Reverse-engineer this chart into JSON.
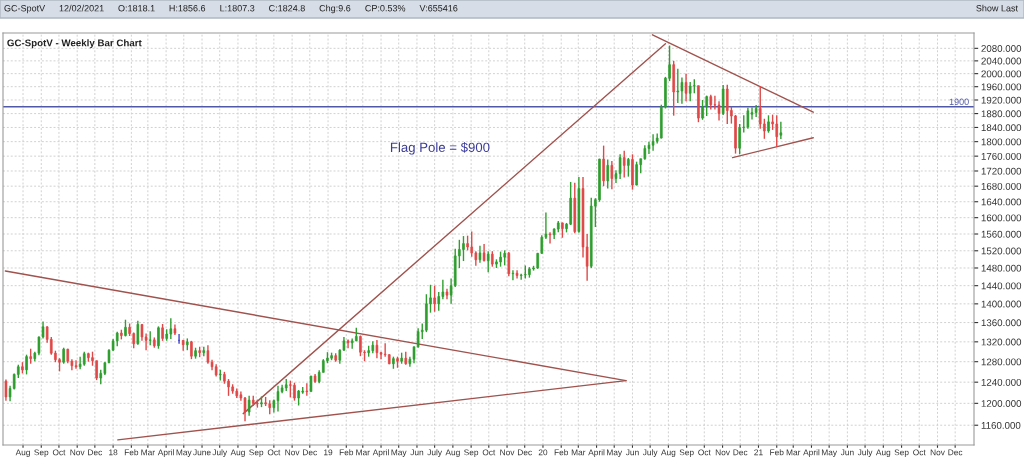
{
  "chart_data": {
    "type": "candlestick",
    "title": "GC-SpotV - Weekly Bar Chart",
    "annotations": [
      "GC-SpotV",
      "12/02/2021",
      "O:1818.1",
      "H:1856.6",
      "L:1807.3",
      "C:1824.8",
      "Chg:9.6",
      "CP:0.53%",
      "V:655416",
      "Show Last",
      "Flag Pole = $900"
    ],
    "x": [
      "2017-07-03",
      "2017-07-10",
      "2017-07-17",
      "2017-07-24",
      "2017-07-31",
      "2017-08-07",
      "2017-08-14",
      "2017-08-21",
      "2017-08-28",
      "2017-09-04",
      "2017-09-11",
      "2017-09-18",
      "2017-09-25",
      "2017-10-02",
      "2017-10-09",
      "2017-10-16",
      "2017-10-23",
      "2017-10-30",
      "2017-11-06",
      "2017-11-13",
      "2017-11-20",
      "2017-11-27",
      "2017-12-04",
      "2017-12-11",
      "2017-12-18",
      "2017-12-25",
      "2018-01-01",
      "2018-01-08",
      "2018-01-15",
      "2018-01-22",
      "2018-01-29",
      "2018-02-05",
      "2018-02-12",
      "2018-02-19",
      "2018-02-26",
      "2018-03-05",
      "2018-03-12",
      "2018-03-19",
      "2018-03-26",
      "2018-04-02",
      "2018-04-09",
      "2018-04-16",
      "2018-04-23",
      "2018-04-30",
      "2018-05-07",
      "2018-05-14",
      "2018-05-21",
      "2018-05-28",
      "2018-06-04",
      "2018-06-11",
      "2018-06-18",
      "2018-06-25",
      "2018-07-02",
      "2018-07-09",
      "2018-07-16",
      "2018-07-23",
      "2018-07-30",
      "2018-08-06",
      "2018-08-13",
      "2018-08-20",
      "2018-08-27",
      "2018-09-03",
      "2018-09-10",
      "2018-09-17",
      "2018-09-24",
      "2018-10-01",
      "2018-10-08",
      "2018-10-15",
      "2018-10-22",
      "2018-10-29",
      "2018-11-05",
      "2018-11-12",
      "2018-11-19",
      "2018-11-26",
      "2018-12-03",
      "2018-12-10",
      "2018-12-17",
      "2018-12-24",
      "2018-12-31",
      "2019-01-07",
      "2019-01-14",
      "2019-01-21",
      "2019-01-28",
      "2019-02-04",
      "2019-02-11",
      "2019-02-18",
      "2019-02-25",
      "2019-03-04",
      "2019-03-11",
      "2019-03-18",
      "2019-03-25",
      "2019-04-01",
      "2019-04-08",
      "2019-04-15",
      "2019-04-22",
      "2019-04-29",
      "2019-05-06",
      "2019-05-13",
      "2019-05-20",
      "2019-05-27",
      "2019-06-03",
      "2019-06-10",
      "2019-06-17",
      "2019-06-24",
      "2019-07-01",
      "2019-07-08",
      "2019-07-15",
      "2019-07-22",
      "2019-07-29",
      "2019-08-05",
      "2019-08-12",
      "2019-08-19",
      "2019-08-26",
      "2019-09-02",
      "2019-09-09",
      "2019-09-16",
      "2019-09-23",
      "2019-09-30",
      "2019-10-07",
      "2019-10-14",
      "2019-10-21",
      "2019-10-28",
      "2019-11-04",
      "2019-11-11",
      "2019-11-18",
      "2019-11-25",
      "2019-12-02",
      "2019-12-09",
      "2019-12-16",
      "2019-12-23",
      "2019-12-30",
      "2020-01-06",
      "2020-01-13",
      "2020-01-20",
      "2020-01-27",
      "2020-02-03",
      "2020-02-10",
      "2020-02-17",
      "2020-02-24",
      "2020-03-02",
      "2020-03-09",
      "2020-03-16",
      "2020-03-23",
      "2020-03-30",
      "2020-04-06",
      "2020-04-13",
      "2020-04-20",
      "2020-04-27",
      "2020-05-04",
      "2020-05-11",
      "2020-05-18",
      "2020-05-25",
      "2020-06-01",
      "2020-06-08",
      "2020-06-15",
      "2020-06-22",
      "2020-06-29",
      "2020-07-06",
      "2020-07-13",
      "2020-07-20",
      "2020-07-27",
      "2020-08-03",
      "2020-08-10",
      "2020-08-17",
      "2020-08-24",
      "2020-08-31",
      "2020-09-07",
      "2020-09-14",
      "2020-09-21",
      "2020-09-28",
      "2020-10-05",
      "2020-10-12",
      "2020-10-19",
      "2020-10-26",
      "2020-11-02",
      "2020-11-09",
      "2020-11-16",
      "2020-11-23",
      "2020-11-30",
      "2020-12-07",
      "2020-12-14",
      "2020-12-21",
      "2020-12-28",
      "2021-01-04",
      "2021-01-11",
      "2021-01-18",
      "2021-01-25",
      "2021-02-01",
      "2021-02-08"
    ],
    "ohlc": [
      [
        1242,
        1245,
        1205,
        1212
      ],
      [
        1212,
        1233,
        1204,
        1228
      ],
      [
        1228,
        1257,
        1226,
        1255
      ],
      [
        1255,
        1274,
        1248,
        1270
      ],
      [
        1270,
        1279,
        1257,
        1264
      ],
      [
        1264,
        1294,
        1255,
        1290
      ],
      [
        1290,
        1306,
        1276,
        1286
      ],
      [
        1286,
        1300,
        1281,
        1297
      ],
      [
        1297,
        1331,
        1293,
        1330
      ],
      [
        1330,
        1362,
        1327,
        1351
      ],
      [
        1351,
        1352,
        1318,
        1325
      ],
      [
        1325,
        1330,
        1294,
        1297
      ],
      [
        1297,
        1302,
        1279,
        1284
      ],
      [
        1284,
        1287,
        1261,
        1279
      ],
      [
        1279,
        1308,
        1276,
        1305
      ],
      [
        1305,
        1306,
        1277,
        1281
      ],
      [
        1281,
        1285,
        1263,
        1272
      ],
      [
        1272,
        1283,
        1266,
        1270
      ],
      [
        1270,
        1290,
        1265,
        1275
      ],
      [
        1275,
        1300,
        1272,
        1296
      ],
      [
        1296,
        1298,
        1280,
        1288
      ],
      [
        1288,
        1300,
        1272,
        1282
      ],
      [
        1282,
        1282,
        1244,
        1248
      ],
      [
        1248,
        1264,
        1236,
        1257
      ],
      [
        1257,
        1279,
        1254,
        1278
      ],
      [
        1278,
        1305,
        1277,
        1303
      ],
      [
        1303,
        1326,
        1302,
        1322
      ],
      [
        1322,
        1341,
        1311,
        1338
      ],
      [
        1338,
        1345,
        1325,
        1333
      ],
      [
        1333,
        1366,
        1331,
        1350
      ],
      [
        1350,
        1358,
        1332,
        1337
      ],
      [
        1337,
        1339,
        1307,
        1316
      ],
      [
        1316,
        1364,
        1314,
        1356
      ],
      [
        1356,
        1357,
        1322,
        1330
      ],
      [
        1330,
        1337,
        1303,
        1323
      ],
      [
        1323,
        1342,
        1313,
        1324
      ],
      [
        1324,
        1329,
        1308,
        1312
      ],
      [
        1312,
        1352,
        1306,
        1349
      ],
      [
        1349,
        1357,
        1322,
        1327
      ],
      [
        1327,
        1346,
        1322,
        1336
      ],
      [
        1336,
        1369,
        1326,
        1347
      ],
      [
        1347,
        1356,
        1334,
        1338
      ],
      [
        1323,
        1336,
        1316,
        1323
      ],
      [
        1323,
        1324,
        1302,
        1314
      ],
      [
        1314,
        1327,
        1303,
        1320
      ],
      [
        1320,
        1322,
        1285,
        1291
      ],
      [
        1291,
        1308,
        1286,
        1302
      ],
      [
        1302,
        1310,
        1289,
        1298
      ],
      [
        1298,
        1310,
        1291,
        1302
      ],
      [
        1302,
        1313,
        1276,
        1279
      ],
      [
        1279,
        1284,
        1263,
        1270
      ],
      [
        1270,
        1275,
        1251,
        1254
      ],
      [
        1254,
        1264,
        1243,
        1255
      ],
      [
        1255,
        1260,
        1237,
        1242
      ],
      [
        1242,
        1246,
        1214,
        1231
      ],
      [
        1231,
        1236,
        1218,
        1223
      ],
      [
        1223,
        1228,
        1210,
        1214
      ],
      [
        1216,
        1222,
        1205,
        1210
      ],
      [
        1210,
        1212,
        1167,
        1184
      ],
      [
        1184,
        1214,
        1177,
        1206
      ],
      [
        1206,
        1214,
        1195,
        1200
      ],
      [
        1200,
        1207,
        1192,
        1199
      ],
      [
        1199,
        1213,
        1193,
        1201
      ],
      [
        1201,
        1212,
        1195,
        1199
      ],
      [
        1199,
        1206,
        1180,
        1192
      ],
      [
        1192,
        1207,
        1183,
        1205
      ],
      [
        1205,
        1233,
        1185,
        1222
      ],
      [
        1222,
        1235,
        1219,
        1229
      ],
      [
        1229,
        1246,
        1223,
        1235
      ],
      [
        1235,
        1243,
        1211,
        1234
      ],
      [
        1234,
        1239,
        1205,
        1210
      ],
      [
        1210,
        1225,
        1196,
        1223
      ],
      [
        1221,
        1231,
        1218,
        1223
      ],
      [
        1223,
        1238,
        1214,
        1222
      ],
      [
        1222,
        1252,
        1222,
        1252
      ],
      [
        1252,
        1256,
        1239,
        1241
      ],
      [
        1241,
        1263,
        1238,
        1259
      ],
      [
        1259,
        1285,
        1259,
        1282
      ],
      [
        1282,
        1299,
        1277,
        1287
      ],
      [
        1287,
        1298,
        1283,
        1292
      ],
      [
        1292,
        1297,
        1280,
        1283
      ],
      [
        1283,
        1305,
        1276,
        1303
      ],
      [
        1303,
        1330,
        1302,
        1322
      ],
      [
        1322,
        1325,
        1307,
        1318
      ],
      [
        1318,
        1327,
        1306,
        1322
      ],
      [
        1322,
        1349,
        1321,
        1331
      ],
      [
        1331,
        1333,
        1291,
        1299
      ],
      [
        1299,
        1303,
        1281,
        1298
      ],
      [
        1298,
        1312,
        1290,
        1302
      ],
      [
        1302,
        1321,
        1297,
        1313
      ],
      [
        1313,
        1324,
        1287,
        1298
      ],
      [
        1298,
        1300,
        1285,
        1295
      ],
      [
        1295,
        1317,
        1290,
        1294
      ],
      [
        1294,
        1295,
        1275,
        1276
      ],
      [
        1276,
        1290,
        1266,
        1286
      ],
      [
        1286,
        1290,
        1268,
        1281
      ],
      [
        1281,
        1298,
        1276,
        1287
      ],
      [
        1287,
        1300,
        1274,
        1276
      ],
      [
        1276,
        1290,
        1270,
        1285
      ],
      [
        1285,
        1310,
        1277,
        1310
      ],
      [
        1310,
        1348,
        1308,
        1341
      ],
      [
        1341,
        1358,
        1326,
        1344
      ],
      [
        1344,
        1421,
        1340,
        1400
      ],
      [
        1400,
        1442,
        1381,
        1413
      ],
      [
        1413,
        1440,
        1383,
        1400
      ],
      [
        1400,
        1426,
        1385,
        1416
      ],
      [
        1416,
        1453,
        1410,
        1426
      ],
      [
        1426,
        1433,
        1410,
        1419
      ],
      [
        1419,
        1456,
        1400,
        1440
      ],
      [
        1440,
        1525,
        1437,
        1508
      ],
      [
        1508,
        1546,
        1480,
        1523
      ],
      [
        1523,
        1555,
        1496,
        1537
      ],
      [
        1537,
        1556,
        1521,
        1529
      ],
      [
        1529,
        1566,
        1506,
        1515
      ],
      [
        1515,
        1519,
        1485,
        1499
      ],
      [
        1499,
        1532,
        1492,
        1515
      ],
      [
        1515,
        1536,
        1495,
        1497
      ],
      [
        1497,
        1519,
        1470,
        1512
      ],
      [
        1512,
        1519,
        1483,
        1489
      ],
      [
        1489,
        1500,
        1480,
        1494
      ],
      [
        1494,
        1518,
        1483,
        1505
      ],
      [
        1505,
        1521,
        1486,
        1514
      ],
      [
        1514,
        1517,
        1461,
        1467
      ],
      [
        1467,
        1475,
        1452,
        1468
      ],
      [
        1468,
        1475,
        1456,
        1463
      ],
      [
        1463,
        1467,
        1453,
        1464
      ],
      [
        1464,
        1486,
        1456,
        1465
      ],
      [
        1465,
        1482,
        1458,
        1478
      ],
      [
        1478,
        1485,
        1474,
        1480
      ],
      [
        1480,
        1515,
        1478,
        1514
      ],
      [
        1514,
        1557,
        1513,
        1552
      ],
      [
        1552,
        1613,
        1548,
        1560
      ],
      [
        1560,
        1564,
        1537,
        1558
      ],
      [
        1558,
        1574,
        1548,
        1572
      ],
      [
        1572,
        1592,
        1564,
        1587
      ],
      [
        1587,
        1588,
        1551,
        1573
      ],
      [
        1573,
        1587,
        1564,
        1584
      ],
      [
        1584,
        1691,
        1582,
        1649
      ],
      [
        1649,
        1689,
        1562,
        1566
      ],
      [
        1566,
        1704,
        1563,
        1674
      ],
      [
        1674,
        1704,
        1504,
        1529
      ],
      [
        1529,
        1560,
        1451,
        1484
      ],
      [
        1484,
        1650,
        1480,
        1629
      ],
      [
        1629,
        1649,
        1577,
        1645
      ],
      [
        1645,
        1753,
        1640,
        1752
      ],
      [
        1752,
        1789,
        1680,
        1694
      ],
      [
        1694,
        1751,
        1674,
        1735
      ],
      [
        1735,
        1747,
        1672,
        1700
      ],
      [
        1700,
        1722,
        1688,
        1713
      ],
      [
        1713,
        1765,
        1699,
        1756
      ],
      [
        1756,
        1775,
        1703,
        1735
      ],
      [
        1735,
        1755,
        1705,
        1751
      ],
      [
        1751,
        1765,
        1671,
        1683
      ],
      [
        1683,
        1745,
        1682,
        1737
      ],
      [
        1737,
        1753,
        1714,
        1753
      ],
      [
        1753,
        1790,
        1750,
        1781
      ],
      [
        1781,
        1800,
        1766,
        1790
      ],
      [
        1790,
        1821,
        1775,
        1801
      ],
      [
        1801,
        1823,
        1795,
        1810
      ],
      [
        1810,
        1906,
        1809,
        1900
      ],
      [
        1900,
        1990,
        1895,
        1986
      ],
      [
        1986,
        2089,
        1977,
        2028
      ],
      [
        2028,
        2040,
        1874,
        1944
      ],
      [
        1944,
        2015,
        1911,
        1947
      ],
      [
        1947,
        1988,
        1909,
        1973
      ],
      [
        1973,
        2000,
        1916,
        1940
      ],
      [
        1940,
        1974,
        1916,
        1962
      ],
      [
        1962,
        1983,
        1940,
        1963
      ],
      [
        1963,
        1963,
        1855,
        1867
      ],
      [
        1867,
        1920,
        1862,
        1900
      ],
      [
        1900,
        1933,
        1873,
        1930
      ],
      [
        1930,
        1936,
        1892,
        1906
      ],
      [
        1906,
        1933,
        1892,
        1905
      ],
      [
        1905,
        1916,
        1860,
        1880
      ],
      [
        1880,
        1965,
        1876,
        1953
      ],
      [
        1953,
        1966,
        1850,
        1889
      ],
      [
        1889,
        1900,
        1851,
        1873
      ],
      [
        1873,
        1876,
        1767,
        1782
      ],
      [
        1782,
        1850,
        1765,
        1840
      ],
      [
        1840,
        1875,
        1826,
        1841
      ],
      [
        1841,
        1897,
        1836,
        1888
      ],
      [
        1878,
        1898,
        1863,
        1883
      ],
      [
        1883,
        1905,
        1870,
        1895
      ],
      [
        1895,
        1962,
        1836,
        1850
      ],
      [
        1850,
        1865,
        1808,
        1830
      ],
      [
        1830,
        1875,
        1825,
        1856
      ],
      [
        1856,
        1877,
        1833,
        1850
      ],
      [
        1850,
        1875,
        1785,
        1814
      ],
      [
        1818.1,
        1856.6,
        1807.3,
        1824.8
      ]
    ],
    "colors": [
      "#e04848",
      "#2e9e2e",
      "#2e9e2e",
      "#2e9e2e",
      "#e04848",
      "#2e9e2e",
      "#e04848",
      "#2e9e2e",
      "#2e9e2e",
      "#2e9e2e",
      "#e04848",
      "#e04848",
      "#e04848",
      "#e04848",
      "#2e9e2e",
      "#e04848",
      "#e04848",
      "#e04848",
      "#2e9e2e",
      "#2e9e2e",
      "#e04848",
      "#e04848",
      "#e04848",
      "#2e9e2e",
      "#2e9e2e",
      "#2e9e2e",
      "#2e9e2e",
      "#2e9e2e",
      "#e04848",
      "#2e9e2e",
      "#e04848",
      "#e04848",
      "#2e9e2e",
      "#e04848",
      "#e04848",
      "#2e9e2e",
      "#e04848",
      "#2e9e2e",
      "#e04848",
      "#2e9e2e",
      "#2e9e2e",
      "#e04848",
      "#4646c8",
      "#e04848",
      "#2e9e2e",
      "#e04848",
      "#2e9e2e",
      "#e04848",
      "#2e9e2e",
      "#e04848",
      "#e04848",
      "#e04848",
      "#2e9e2e",
      "#e04848",
      "#e04848",
      "#e04848",
      "#e04848",
      "#e04848",
      "#e04848",
      "#2e9e2e",
      "#e04848",
      "#e04848",
      "#2e9e2e",
      "#e04848",
      "#e04848",
      "#2e9e2e",
      "#2e9e2e",
      "#2e9e2e",
      "#2e9e2e",
      "#e04848",
      "#e04848",
      "#2e9e2e",
      "#2e9e2e",
      "#e04848",
      "#2e9e2e",
      "#e04848",
      "#2e9e2e",
      "#2e9e2e",
      "#2e9e2e",
      "#2e9e2e",
      "#e04848",
      "#2e9e2e",
      "#2e9e2e",
      "#e04848",
      "#2e9e2e",
      "#2e9e2e",
      "#e04848",
      "#e04848",
      "#2e9e2e",
      "#2e9e2e",
      "#e04848",
      "#e04848",
      "#e04848",
      "#e04848",
      "#2e9e2e",
      "#e04848",
      "#2e9e2e",
      "#e04848",
      "#2e9e2e",
      "#2e9e2e",
      "#2e9e2e",
      "#2e9e2e",
      "#2e9e2e",
      "#2e9e2e",
      "#e04848",
      "#2e9e2e",
      "#2e9e2e",
      "#e04848",
      "#2e9e2e",
      "#2e9e2e",
      "#2e9e2e",
      "#2e9e2e",
      "#e04848",
      "#e04848",
      "#e04848",
      "#2e9e2e",
      "#e04848",
      "#2e9e2e",
      "#e04848",
      "#2e9e2e",
      "#2e9e2e",
      "#2e9e2e",
      "#e04848",
      "#2e9e2e",
      "#e04848",
      "#2e9e2e",
      "#2e9e2e",
      "#2e9e2e",
      "#2e9e2e",
      "#2e9e2e",
      "#2e9e2e",
      "#2e9e2e",
      "#e04848",
      "#2e9e2e",
      "#2e9e2e",
      "#e04848",
      "#2e9e2e",
      "#2e9e2e",
      "#e04848",
      "#2e9e2e",
      "#e04848",
      "#e04848",
      "#2e9e2e",
      "#2e9e2e",
      "#2e9e2e",
      "#e04848",
      "#2e9e2e",
      "#e04848",
      "#2e9e2e",
      "#2e9e2e",
      "#e04848",
      "#2e9e2e",
      "#e04848",
      "#2e9e2e",
      "#2e9e2e",
      "#2e9e2e",
      "#2e9e2e",
      "#2e9e2e",
      "#2e9e2e",
      "#2e9e2e",
      "#2e9e2e",
      "#2e9e2e",
      "#e04848",
      "#2e9e2e",
      "#2e9e2e",
      "#e04848",
      "#2e9e2e",
      "#2e9e2e",
      "#e04848",
      "#2e9e2e",
      "#2e9e2e",
      "#e04848",
      "#e04848",
      "#e04848",
      "#2e9e2e",
      "#e04848",
      "#e04848",
      "#e04848",
      "#2e9e2e",
      "#2e9e2e",
      "#2e9e2e",
      "#2e9e2e",
      "#2e9e2e",
      "#e04848",
      "#e04848",
      "#2e9e2e",
      "#e04848",
      "#e04848",
      "#2e9e2e"
    ],
    "series": [
      {
        "type": "line",
        "color": "#a0524d",
        "x": [
          "2017-07-02",
          "2020-05-21"
        ],
        "values": [
          1473,
          1243
        ]
      },
      {
        "type": "line",
        "color": "#a0524d",
        "x": [
          "2018-01-09",
          "2020-05-21"
        ],
        "values": [
          1134,
          1243
        ]
      },
      {
        "type": "line",
        "color": "#a0524d",
        "x": [
          "2018-08-10",
          "2020-07-27"
        ],
        "values": [
          1181,
          2095
        ]
      },
      {
        "type": "line",
        "color": "#a0524d",
        "x": [
          "2020-07-05",
          "2021-04-04"
        ],
        "values": [
          2124,
          1884
        ]
      },
      {
        "type": "line",
        "color": "#a0524d",
        "x": [
          "2020-11-18",
          "2021-04-04"
        ],
        "values": [
          1756,
          1811
        ]
      }
    ],
    "ref_lines": [
      {
        "axis": "y",
        "value": 1900,
        "label": "1900",
        "color": "#5058a8"
      }
    ],
    "log": true,
    "ylim": [
      1125,
      2130
    ],
    "yticks": [
      {
        "value": 1160,
        "label": "1160.000"
      },
      {
        "value": 1200,
        "label": "1200.000"
      },
      {
        "value": 1240,
        "label": "1240.000"
      },
      {
        "value": 1280,
        "label": "1280.000"
      },
      {
        "value": 1320,
        "label": "1320.000"
      },
      {
        "value": 1360,
        "label": "1360.000"
      },
      {
        "value": 1400,
        "label": "1400.000"
      },
      {
        "value": 1440,
        "label": "1440.000"
      },
      {
        "value": 1480,
        "label": "1480.000"
      },
      {
        "value": 1520,
        "label": "1520.000"
      },
      {
        "value": 1560,
        "label": "1560.000"
      },
      {
        "value": 1600,
        "label": "1600.000"
      },
      {
        "value": 1640,
        "label": "1640.000"
      },
      {
        "value": 1680,
        "label": "1680.000"
      },
      {
        "value": 1720,
        "label": "1720.000"
      },
      {
        "value": 1760,
        "label": "1760.000"
      },
      {
        "value": 1800,
        "label": "1800.000"
      },
      {
        "value": 1840,
        "label": "1840.000"
      },
      {
        "value": 1880,
        "label": "1880.000"
      },
      {
        "value": 1920,
        "label": "1920.000"
      },
      {
        "value": 1960,
        "label": "1960.000"
      },
      {
        "value": 2000,
        "label": "2000.000"
      },
      {
        "value": 2040,
        "label": "2040.000"
      },
      {
        "value": 2080,
        "label": "2080.000"
      }
    ],
    "xlim": [
      "2017-06-28",
      "2022-01-02"
    ],
    "xticks": [
      {
        "value": "2017-08-01",
        "label": "Aug"
      },
      {
        "value": "2017-09-01",
        "label": "Sep"
      },
      {
        "value": "2017-10-01",
        "label": "Oct"
      },
      {
        "value": "2017-11-01",
        "label": "Nov"
      },
      {
        "value": "2017-12-01",
        "label": "Dec"
      },
      {
        "value": "2018-01-01",
        "label": "18"
      },
      {
        "value": "2018-02-01",
        "label": "Feb"
      },
      {
        "value": "2018-03-01",
        "label": "Mar"
      },
      {
        "value": "2018-04-01",
        "label": "April"
      },
      {
        "value": "2018-05-01",
        "label": "May"
      },
      {
        "value": "2018-06-01",
        "label": "June"
      },
      {
        "value": "2018-07-01",
        "label": "July"
      },
      {
        "value": "2018-08-01",
        "label": "Aug"
      },
      {
        "value": "2018-09-01",
        "label": "Sep"
      },
      {
        "value": "2018-10-01",
        "label": "Oct"
      },
      {
        "value": "2018-11-01",
        "label": "Nov"
      },
      {
        "value": "2018-12-01",
        "label": "Dec"
      },
      {
        "value": "2019-01-01",
        "label": "19"
      },
      {
        "value": "2019-02-01",
        "label": "Feb"
      },
      {
        "value": "2019-03-01",
        "label": "Mar"
      },
      {
        "value": "2019-04-01",
        "label": "April"
      },
      {
        "value": "2019-05-01",
        "label": "May"
      },
      {
        "value": "2019-06-01",
        "label": "Jun"
      },
      {
        "value": "2019-07-01",
        "label": "July"
      },
      {
        "value": "2019-08-01",
        "label": "Aug"
      },
      {
        "value": "2019-09-01",
        "label": "Sep"
      },
      {
        "value": "2019-10-01",
        "label": "Oct"
      },
      {
        "value": "2019-11-01",
        "label": "Nov"
      },
      {
        "value": "2019-12-01",
        "label": "Dec"
      },
      {
        "value": "2020-01-01",
        "label": "20"
      },
      {
        "value": "2020-02-01",
        "label": "Feb"
      },
      {
        "value": "2020-03-01",
        "label": "Mar"
      },
      {
        "value": "2020-04-01",
        "label": "April"
      },
      {
        "value": "2020-05-01",
        "label": "May"
      },
      {
        "value": "2020-06-01",
        "label": "Jun"
      },
      {
        "value": "2020-07-01",
        "label": "July"
      },
      {
        "value": "2020-08-01",
        "label": "Aug"
      },
      {
        "value": "2020-09-01",
        "label": "Sep"
      },
      {
        "value": "2020-10-01",
        "label": "Oct"
      },
      {
        "value": "2020-11-01",
        "label": "Nov"
      },
      {
        "value": "2020-12-01",
        "label": "Dec"
      },
      {
        "value": "2021-01-01",
        "label": "21"
      },
      {
        "value": "2021-02-01",
        "label": "Feb"
      },
      {
        "value": "2021-03-01",
        "label": "Mar"
      },
      {
        "value": "2021-04-01",
        "label": "April"
      },
      {
        "value": "2021-05-01",
        "label": "May"
      },
      {
        "value": "2021-06-01",
        "label": "Jun"
      },
      {
        "value": "2021-07-01",
        "label": "July"
      },
      {
        "value": "2021-08-01",
        "label": "Aug"
      },
      {
        "value": "2021-09-01",
        "label": "Sep"
      },
      {
        "value": "2021-10-01",
        "label": "Oct"
      },
      {
        "value": "2021-11-01",
        "label": "Nov"
      },
      {
        "value": "2021-12-01",
        "label": "Dec"
      }
    ],
    "grid": true,
    "legend": false
  }
}
